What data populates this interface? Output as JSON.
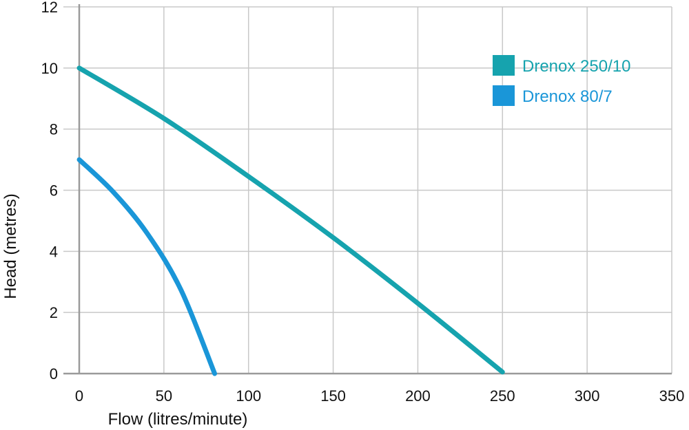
{
  "chart_data": {
    "type": "line",
    "xlabel": "Flow (litres/minute)",
    "ylabel": "Head (metres)",
    "xlim": [
      0,
      350
    ],
    "ylim": [
      0,
      12
    ],
    "x_ticks": [
      0,
      50,
      100,
      150,
      200,
      250,
      300,
      350
    ],
    "y_ticks": [
      0,
      2,
      4,
      6,
      8,
      10,
      12
    ],
    "grid": true,
    "legend_position": "top-right",
    "series": [
      {
        "name": "Drenox 250/10",
        "color": "#16a3ae",
        "points": [
          [
            0,
            10.0
          ],
          [
            50,
            8.35
          ],
          [
            100,
            6.45
          ],
          [
            150,
            4.45
          ],
          [
            200,
            2.3
          ],
          [
            250,
            0.05
          ]
        ]
      },
      {
        "name": "Drenox 80/7",
        "color": "#1a96d8",
        "points": [
          [
            0,
            7.0
          ],
          [
            20,
            5.95
          ],
          [
            40,
            4.6
          ],
          [
            60,
            2.75
          ],
          [
            80,
            0.0
          ]
        ]
      }
    ]
  }
}
